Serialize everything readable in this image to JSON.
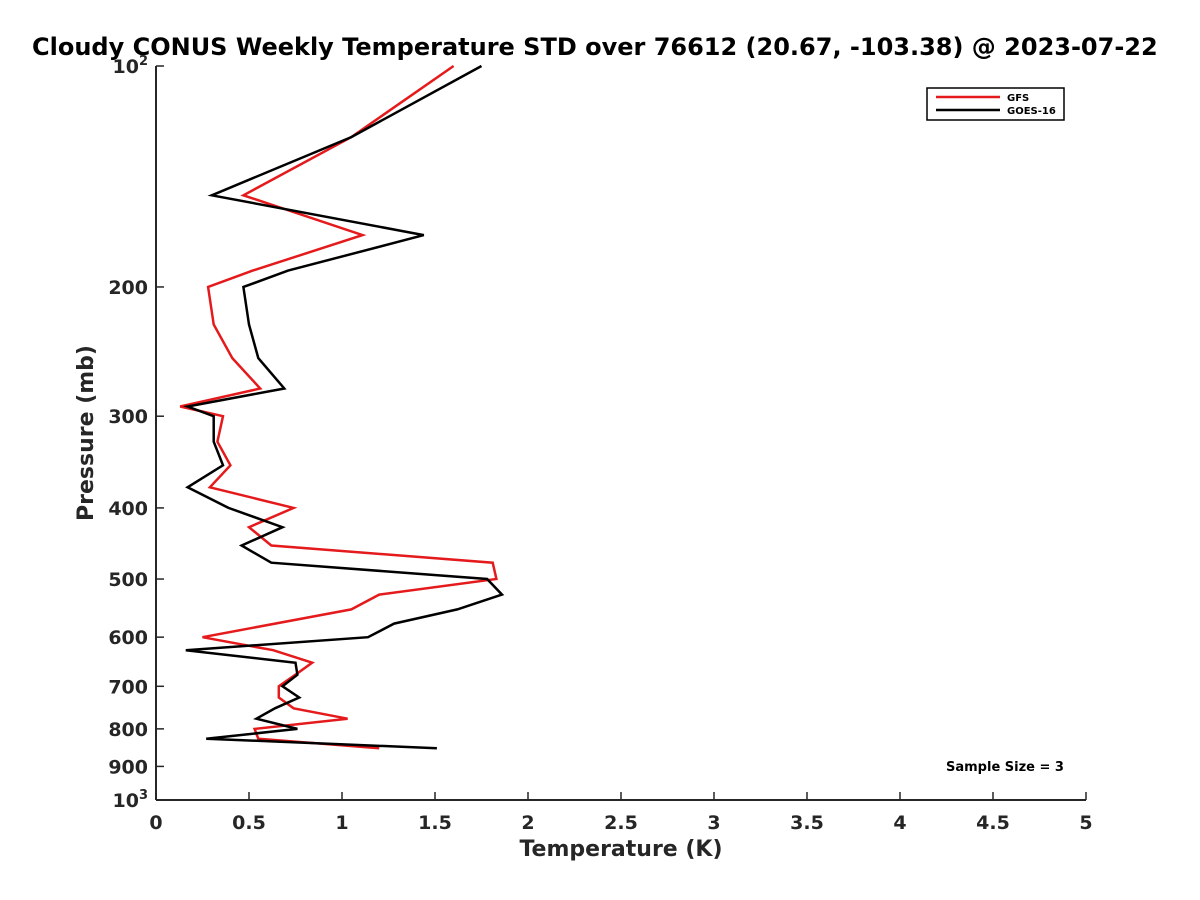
{
  "chart_data": {
    "type": "line",
    "title": "Cloudy CONUS Weekly Temperature STD over 76612 (20.67, -103.38) @ 2023-07-22",
    "xlabel": "Temperature (K)",
    "ylabel": "Pressure (mb)",
    "xlim": [
      0,
      5
    ],
    "ylim": [
      100,
      1000
    ],
    "y_scale": "log",
    "y_reversed": true,
    "x_ticks": [
      "0",
      "0.5",
      "1",
      "1.5",
      "2",
      "2.5",
      "3",
      "3.5",
      "4",
      "4.5",
      "5"
    ],
    "y_ticks": [
      {
        "base": "10",
        "exp": "2",
        "value": 100
      },
      {
        "base": "200",
        "exp": "",
        "value": 200
      },
      {
        "base": "300",
        "exp": "",
        "value": 300
      },
      {
        "base": "400",
        "exp": "",
        "value": 400
      },
      {
        "base": "500",
        "exp": "",
        "value": 500
      },
      {
        "base": "600",
        "exp": "",
        "value": 600
      },
      {
        "base": "700",
        "exp": "",
        "value": 700
      },
      {
        "base": "800",
        "exp": "",
        "value": 800
      },
      {
        "base": "900",
        "exp": "",
        "value": 900
      },
      {
        "base": "10",
        "exp": "3",
        "value": 1000
      }
    ],
    "legend_position": "top-right",
    "annotation": "Sample Size = 3",
    "series": [
      {
        "name": "GFS",
        "color": "#e41a1c",
        "points": [
          [
            1.6,
            100
          ],
          [
            1.05,
            125
          ],
          [
            0.47,
            150
          ],
          [
            1.11,
            170
          ],
          [
            0.52,
            190
          ],
          [
            0.28,
            200
          ],
          [
            0.31,
            225
          ],
          [
            0.41,
            250
          ],
          [
            0.56,
            275
          ],
          [
            0.13,
            291
          ],
          [
            0.36,
            300
          ],
          [
            0.33,
            325
          ],
          [
            0.4,
            350
          ],
          [
            0.29,
            375
          ],
          [
            0.74,
            400
          ],
          [
            0.5,
            425
          ],
          [
            0.62,
            450
          ],
          [
            1.81,
            475
          ],
          [
            1.83,
            500
          ],
          [
            1.2,
            525
          ],
          [
            1.05,
            550
          ],
          [
            0.25,
            600
          ],
          [
            0.63,
            625
          ],
          [
            0.84,
            650
          ],
          [
            0.75,
            675
          ],
          [
            0.66,
            700
          ],
          [
            0.66,
            725
          ],
          [
            0.74,
            750
          ],
          [
            1.03,
            775
          ],
          [
            0.53,
            800
          ],
          [
            0.55,
            825
          ],
          [
            1.2,
            850
          ]
        ]
      },
      {
        "name": "GOES-16",
        "color": "#000000",
        "points": [
          [
            1.75,
            100
          ],
          [
            1.05,
            125
          ],
          [
            0.3,
            150
          ],
          [
            1.44,
            170
          ],
          [
            0.71,
            190
          ],
          [
            0.47,
            200
          ],
          [
            0.5,
            225
          ],
          [
            0.55,
            250
          ],
          [
            0.69,
            275
          ],
          [
            0.17,
            291
          ],
          [
            0.31,
            300
          ],
          [
            0.31,
            325
          ],
          [
            0.36,
            350
          ],
          [
            0.17,
            375
          ],
          [
            0.39,
            400
          ],
          [
            0.68,
            425
          ],
          [
            0.46,
            450
          ],
          [
            0.62,
            475
          ],
          [
            1.78,
            500
          ],
          [
            1.86,
            525
          ],
          [
            1.62,
            550
          ],
          [
            1.28,
            575
          ],
          [
            1.14,
            600
          ],
          [
            0.16,
            625
          ],
          [
            0.75,
            650
          ],
          [
            0.76,
            675
          ],
          [
            0.68,
            700
          ],
          [
            0.77,
            725
          ],
          [
            0.64,
            750
          ],
          [
            0.54,
            775
          ],
          [
            0.76,
            800
          ],
          [
            0.27,
            825
          ],
          [
            1.51,
            850
          ]
        ]
      }
    ]
  }
}
